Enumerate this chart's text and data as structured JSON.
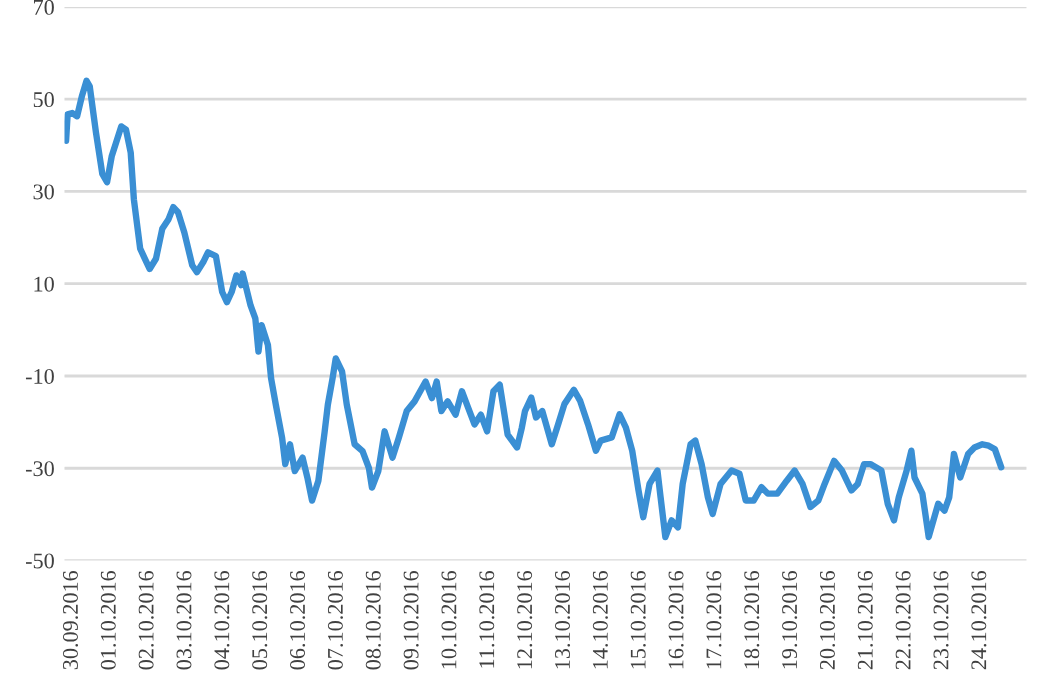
{
  "chart_data": {
    "type": "line",
    "x": [
      "2016-09-29T20:00",
      "2016-09-29T21:00",
      "2016-09-30T00:00",
      "2016-09-30T03:00",
      "2016-09-30T06:00",
      "2016-09-30T09:00",
      "2016-09-30T11:00",
      "2016-09-30T15:00",
      "2016-09-30T19:00",
      "2016-09-30T22:00",
      "2016-10-01T01:00",
      "2016-10-01T07:00",
      "2016-10-01T10:00",
      "2016-10-01T13:00",
      "2016-10-01T15:00",
      "2016-10-01T19:00",
      "2016-10-01T22:00",
      "2016-10-02T01:00",
      "2016-10-02T05:00",
      "2016-10-02T09:00",
      "2016-10-02T13:00",
      "2016-10-02T16:00",
      "2016-10-02T19:00",
      "2016-10-02T23:00",
      "2016-10-03T04:00",
      "2016-10-03T07:00",
      "2016-10-03T11:00",
      "2016-10-03T14:00",
      "2016-10-03T19:00",
      "2016-10-03T23:00",
      "2016-10-04T02:00",
      "2016-10-04T05:00",
      "2016-10-04T08:00",
      "2016-10-04T11:00",
      "2016-10-04T12:00",
      "2016-10-04T17:00",
      "2016-10-04T20:00",
      "2016-10-04T22:00",
      "2016-10-05T00:00",
      "2016-10-05T04:00",
      "2016-10-05T06:00",
      "2016-10-05T09:00",
      "2016-10-05T13:00",
      "2016-10-05T15:00",
      "2016-10-05T18:00",
      "2016-10-05T21:00",
      "2016-10-06T02:00",
      "2016-10-06T05:00",
      "2016-10-06T08:00",
      "2016-10-06T12:00",
      "2016-10-06T16:00",
      "2016-10-06T18:00",
      "2016-10-06T21:00",
      "2016-10-06T23:00",
      "2016-10-07T03:00",
      "2016-10-07T06:00",
      "2016-10-07T11:00",
      "2016-10-07T16:00",
      "2016-10-07T20:00",
      "2016-10-07T22:00",
      "2016-10-08T02:00",
      "2016-10-08T06:00",
      "2016-10-08T11:00",
      "2016-10-08T15:00",
      "2016-10-08T20:00",
      "2016-10-09T01:00",
      "2016-10-09T08:00",
      "2016-10-09T12:00",
      "2016-10-09T15:00",
      "2016-10-09T18:00",
      "2016-10-09T22:00",
      "2016-10-10T03:00",
      "2016-10-10T07:00",
      "2016-10-10T11:00",
      "2016-10-10T15:00",
      "2016-10-10T19:00",
      "2016-10-10T23:00",
      "2016-10-11T03:00",
      "2016-10-11T07:00",
      "2016-10-11T12:00",
      "2016-10-11T18:00",
      "2016-10-11T21:00",
      "2016-10-11T23:00",
      "2016-10-12T03:00",
      "2016-10-12T06:00",
      "2016-10-12T10:00",
      "2016-10-12T16:00",
      "2016-10-12T20:00",
      "2016-10-13T00:00",
      "2016-10-13T06:00",
      "2016-10-13T10:00",
      "2016-10-13T15:00",
      "2016-10-13T20:00",
      "2016-10-13T23:00",
      "2016-10-14T06:00",
      "2016-10-14T11:00",
      "2016-10-14T15:00",
      "2016-10-14T19:00",
      "2016-10-14T23:00",
      "2016-10-15T02:00",
      "2016-10-15T06:00",
      "2016-10-15T11:00",
      "2016-10-15T13:00",
      "2016-10-15T16:00",
      "2016-10-15T20:00",
      "2016-10-16T00:00",
      "2016-10-16T03:00",
      "2016-10-16T08:00",
      "2016-10-16T11:00",
      "2016-10-16T15:00",
      "2016-10-16T19:00",
      "2016-10-16T22:00",
      "2016-10-17T03:00",
      "2016-10-17T10:00",
      "2016-10-17T15:00",
      "2016-10-17T19:00",
      "2016-10-18T00:00",
      "2016-10-18T05:00",
      "2016-10-18T09:00",
      "2016-10-18T15:00",
      "2016-10-18T21:00",
      "2016-10-19T02:00",
      "2016-10-19T07:00",
      "2016-10-19T12:00",
      "2016-10-19T17:00",
      "2016-10-19T21:00",
      "2016-10-20T03:00",
      "2016-10-20T08:00",
      "2016-10-20T14:00",
      "2016-10-20T18:00",
      "2016-10-20T22:00",
      "2016-10-21T02:00",
      "2016-10-21T09:00",
      "2016-10-21T13:00",
      "2016-10-21T17:00",
      "2016-10-21T20:00",
      "2016-10-22T01:00",
      "2016-10-22T04:00",
      "2016-10-22T06:00",
      "2016-10-22T11:00",
      "2016-10-22T15:00",
      "2016-10-22T21:00",
      "2016-10-23T01:00",
      "2016-10-23T04:00",
      "2016-10-23T07:00",
      "2016-10-23T11:00",
      "2016-10-23T16:00",
      "2016-10-23T20:00",
      "2016-10-24T01:00",
      "2016-10-24T05:00",
      "2016-10-24T09:00",
      "2016-10-24T13:00"
    ],
    "series": [
      {
        "color": "#3a8fd4",
        "values": [
          41,
          46.7,
          47,
          46.3,
          50.6,
          54,
          52.8,
          42.7,
          33.8,
          32,
          37.7,
          44.1,
          43.4,
          38.4,
          28.3,
          17.6,
          15.4,
          13.2,
          15.4,
          21.9,
          24,
          26.6,
          25.5,
          21.1,
          14,
          12.5,
          14.7,
          16.8,
          16,
          8.2,
          6,
          8.2,
          11.8,
          9.7,
          12.2,
          5.3,
          2.5,
          -4.7,
          1,
          -3.3,
          -10.5,
          -16.2,
          -23.4,
          -29.1,
          -24.8,
          -30.6,
          -27.7,
          -32,
          -37,
          -32.7,
          -22,
          -16.2,
          -10.5,
          -6.2,
          -9,
          -16.2,
          -24.8,
          -26.3,
          -29.9,
          -34.2,
          -30.6,
          -22,
          -27.7,
          -23.4,
          -17.6,
          -15.5,
          -11.2,
          -14.8,
          -11.2,
          -17.6,
          -15.5,
          -18.4,
          -13.3,
          -16.9,
          -20.5,
          -18.4,
          -22,
          -13.3,
          -11.9,
          -22.7,
          -25.5,
          -21.2,
          -17.6,
          -14.7,
          -19,
          -17.6,
          -24.8,
          -20.5,
          -16.1,
          -13,
          -15.4,
          -20.5,
          -26.2,
          -24,
          -23.3,
          -18.3,
          -21.2,
          -26.2,
          -34.8,
          -40.6,
          -33.4,
          -30.5,
          -36.3,
          -44.9,
          -41.3,
          -42.8,
          -33.4,
          -24.8,
          -24,
          -29.1,
          -36.3,
          -39.9,
          -33.4,
          -30.5,
          -31.2,
          -37,
          -37,
          -34.1,
          -35.5,
          -35.5,
          -32.7,
          -30.5,
          -33.4,
          -38.4,
          -37,
          -33.4,
          -28.4,
          -30.5,
          -34.8,
          -33.4,
          -29.1,
          -29.1,
          -30.5,
          -37.7,
          -41.3,
          -36.3,
          -30.5,
          -26.2,
          -32,
          -35.5,
          -44.9,
          -37.7,
          -39.2,
          -36.3,
          -26.9,
          -32,
          -26.9,
          -25.5,
          -24.8,
          -25.1,
          -25.9,
          -29.8
        ]
      }
    ],
    "xlim": [
      "2016-09-29T19:00",
      "2016-10-25T05:00"
    ],
    "xticks": [
      {
        "value": "2016-09-30",
        "label": "30.09.2016"
      },
      {
        "value": "2016-10-01",
        "label": "01.10.2016"
      },
      {
        "value": "2016-10-02",
        "label": "02.10.2016"
      },
      {
        "value": "2016-10-03",
        "label": "03.10.2016"
      },
      {
        "value": "2016-10-04",
        "label": "04.10.2016"
      },
      {
        "value": "2016-10-05",
        "label": "05.10.2016"
      },
      {
        "value": "2016-10-06",
        "label": "06.10.2016"
      },
      {
        "value": "2016-10-07",
        "label": "07.10.2016"
      },
      {
        "value": "2016-10-08",
        "label": "08.10.2016"
      },
      {
        "value": "2016-10-09",
        "label": "09.10.2016"
      },
      {
        "value": "2016-10-10",
        "label": "10.10.2016"
      },
      {
        "value": "2016-10-11",
        "label": "11.10.2016"
      },
      {
        "value": "2016-10-12",
        "label": "12.10.2016"
      },
      {
        "value": "2016-10-13",
        "label": "13.10.2016"
      },
      {
        "value": "2016-10-14",
        "label": "14.10.2016"
      },
      {
        "value": "2016-10-15",
        "label": "15.10.2016"
      },
      {
        "value": "2016-10-16",
        "label": "16.10.2016"
      },
      {
        "value": "2016-10-17",
        "label": "17.10.2016"
      },
      {
        "value": "2016-10-18",
        "label": "18.10.2016"
      },
      {
        "value": "2016-10-19",
        "label": "19.10.2016"
      },
      {
        "value": "2016-10-20",
        "label": "20.10.2016"
      },
      {
        "value": "2016-10-21",
        "label": "21.10.2016"
      },
      {
        "value": "2016-10-22",
        "label": "22.10.2016"
      },
      {
        "value": "2016-10-23",
        "label": "23.10.2016"
      },
      {
        "value": "2016-10-24",
        "label": "24.10.2016"
      }
    ],
    "ylim": [
      -50,
      70
    ],
    "yticks": [
      -50,
      -30,
      -10,
      10,
      30,
      50,
      70
    ],
    "grid": "y"
  }
}
